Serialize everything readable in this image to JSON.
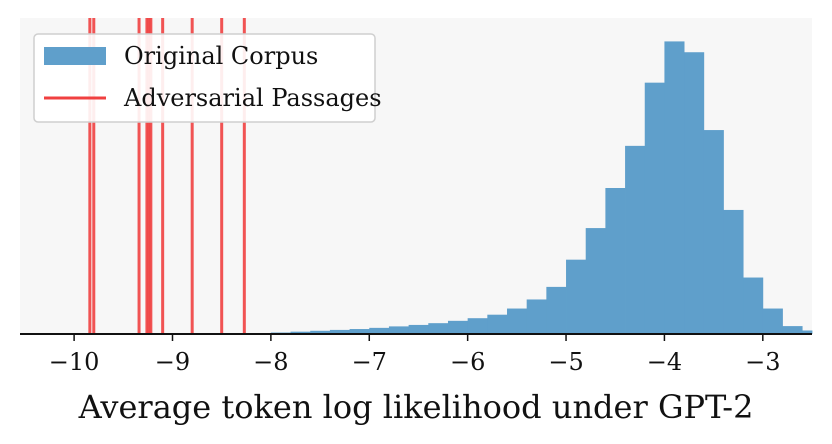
{
  "chart_data": {
    "type": "bar",
    "title": "",
    "xlabel": "Average token log likelihood under GPT-2",
    "ylabel": "",
    "xlim": [
      -10.55,
      -2.5
    ],
    "ylim": [
      0,
      1.08
    ],
    "xticks": [
      -10,
      -9,
      -8,
      -7,
      -6,
      -5,
      -4,
      -3
    ],
    "xtick_labels": [
      "−10",
      "−9",
      "−8",
      "−7",
      "−6",
      "−5",
      "−4",
      "−3"
    ],
    "grid": false,
    "legend_position": "top-left",
    "background_color": "#f7f7f7",
    "series": [
      {
        "name": "Original Corpus",
        "kind": "histogram",
        "color": "#5f9fcb",
        "bin_edges": [
          -8.2,
          -8.0,
          -7.8,
          -7.6,
          -7.4,
          -7.2,
          -7.0,
          -6.8,
          -6.6,
          -6.4,
          -6.2,
          -6.0,
          -5.8,
          -5.6,
          -5.4,
          -5.2,
          -5.0,
          -4.8,
          -4.6,
          -4.4,
          -4.2,
          -4.0,
          -3.8,
          -3.6,
          -3.4,
          -3.2,
          -3.0,
          -2.8,
          -2.6,
          -2.4
        ],
        "values": [
          0.003,
          0.005,
          0.008,
          0.011,
          0.014,
          0.017,
          0.021,
          0.026,
          0.031,
          0.037,
          0.045,
          0.054,
          0.066,
          0.087,
          0.118,
          0.161,
          0.254,
          0.362,
          0.499,
          0.643,
          0.859,
          1.0,
          0.963,
          0.697,
          0.424,
          0.193,
          0.087,
          0.027,
          0.012
        ]
      },
      {
        "name": "Adversarial Passages",
        "kind": "vlines",
        "color": "#f04040",
        "x": [
          -9.84,
          -9.8,
          -9.34,
          -9.26,
          -9.24,
          -9.22,
          -9.1,
          -8.8,
          -8.5,
          -8.27
        ]
      }
    ]
  }
}
